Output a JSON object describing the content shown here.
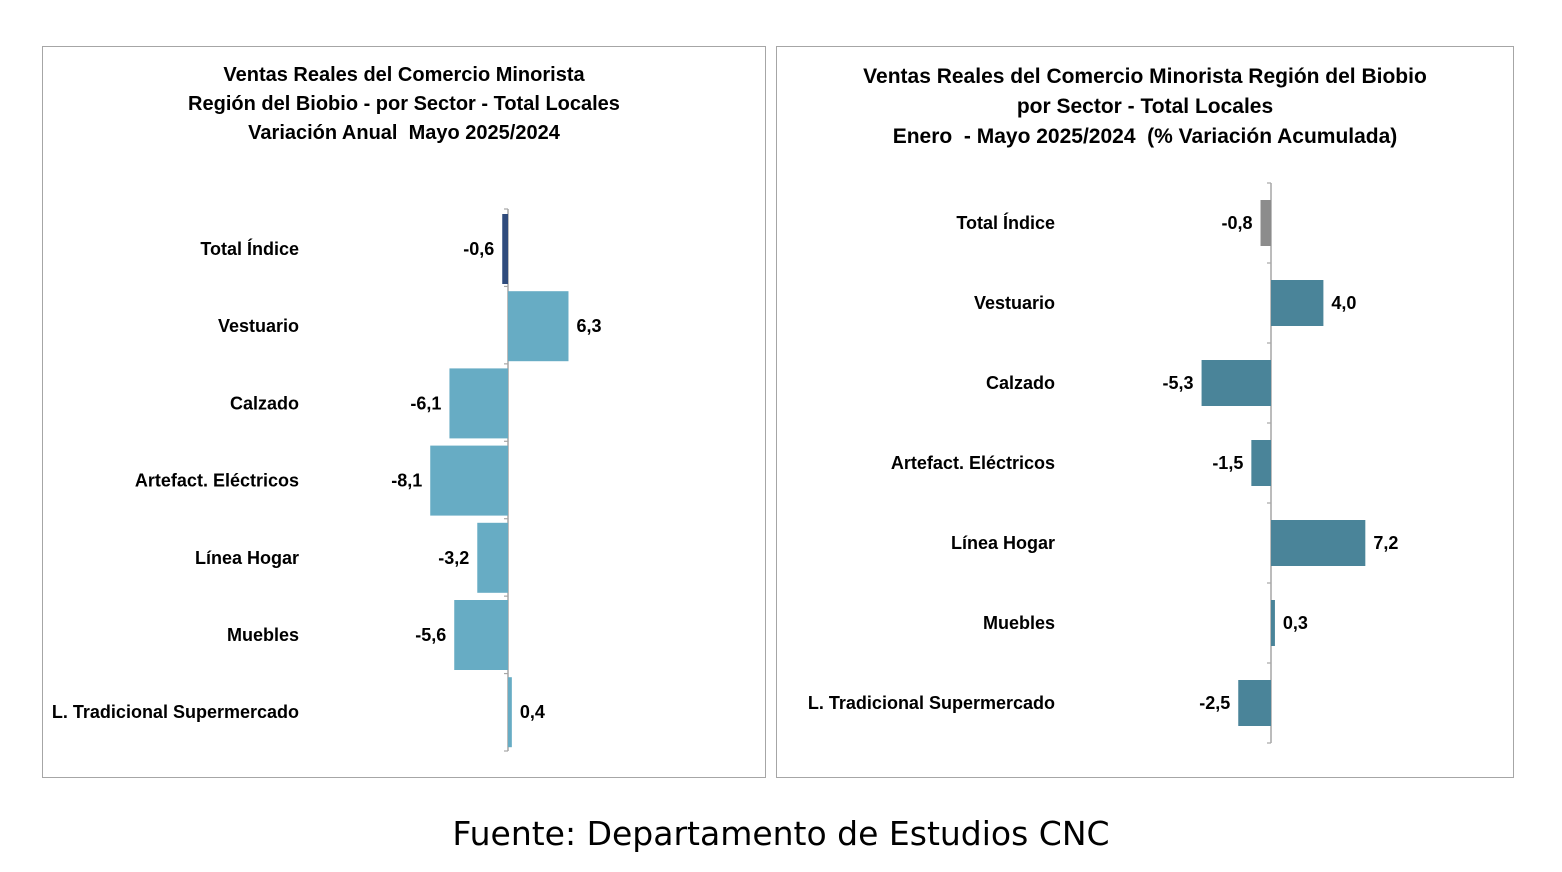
{
  "chart_data": [
    {
      "type": "bar",
      "orientation": "horizontal",
      "title_lines": [
        "Ventas Reales del Comercio Minorista",
        "Región del Biobio - por Sector - Total Locales",
        "Variación Anual  Mayo 2025/2024"
      ],
      "categories": [
        "Total Índice",
        "Vestuario",
        "Calzado",
        "Artefact. Eléctricos",
        "Línea Hogar",
        "Muebles",
        "L. Tradicional Supermercado"
      ],
      "values": [
        -0.6,
        6.3,
        -6.1,
        -8.1,
        -3.2,
        -5.6,
        0.4
      ],
      "value_labels": [
        "-0,6",
        "6,3",
        "-6,1",
        "-8,1",
        "-3,2",
        "-5,6",
        "0,4"
      ],
      "bar_colors": [
        "#2f4b7c",
        "#67acc4",
        "#67acc4",
        "#67acc4",
        "#67acc4",
        "#67acc4",
        "#67acc4"
      ],
      "xlim": [
        -8.1,
        6.3
      ],
      "grid": false,
      "legend": "none"
    },
    {
      "type": "bar",
      "orientation": "horizontal",
      "title_lines": [
        "Ventas Reales del Comercio Minorista Región del Biobio",
        "por Sector - Total Locales",
        "Enero  - Mayo 2025/2024  (% Variación Acumulada)"
      ],
      "categories": [
        "Total Índice",
        "Vestuario",
        "Calzado",
        "Artefact. Eléctricos",
        "Línea Hogar",
        "Muebles",
        "L. Tradicional Supermercado"
      ],
      "values": [
        -0.8,
        4.0,
        -5.3,
        -1.5,
        7.2,
        0.3,
        -2.5
      ],
      "value_labels": [
        "-0,8",
        "4,0",
        "-5,3",
        "-1,5",
        "7,2",
        "0,3",
        "-2,5"
      ],
      "bar_colors": [
        "#8c8c8c",
        "#4a8499",
        "#4a8499",
        "#4a8499",
        "#4a8499",
        "#4a8499",
        "#4a8499"
      ],
      "xlim": [
        -5.3,
        7.2
      ],
      "grid": false,
      "legend": "none"
    }
  ],
  "source_note": "Fuente: Departamento de Estudios CNC"
}
